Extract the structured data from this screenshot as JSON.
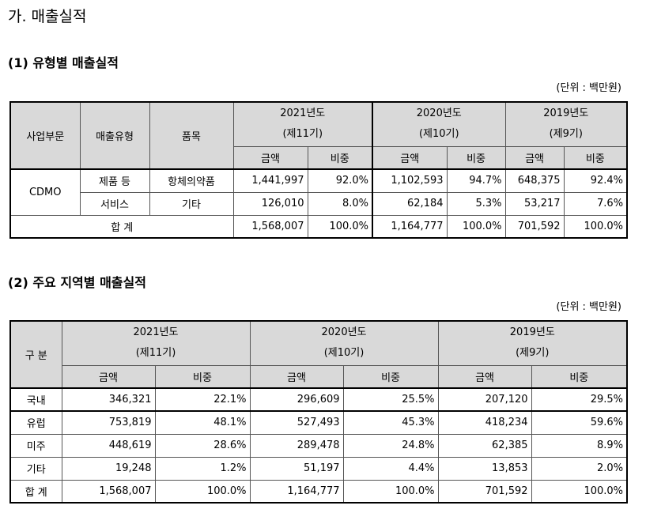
{
  "title": "가. 매출실적",
  "section1": {
    "title": "(1) 유형별 매출실적",
    "unit": "(단위 : 백만원)",
    "headers": {
      "division": "사업부문",
      "type": "매출유형",
      "item": "품목",
      "years": [
        {
          "year": "2021년도",
          "period": "(제11기)"
        },
        {
          "year": "2020년도",
          "period": "(제10기)"
        },
        {
          "year": "2019년도",
          "period": "(제9기)"
        }
      ],
      "amount": "금액",
      "ratio": "비중"
    },
    "division_name": "CDMO",
    "rows": [
      {
        "type": "제품 등",
        "item": "항체의약품",
        "values": [
          "1,441,997",
          "92.0%",
          "1,102,593",
          "94.7%",
          "648,375",
          "92.4%"
        ]
      },
      {
        "type": "서비스",
        "item": "기타",
        "values": [
          "126,010",
          "8.0%",
          "62,184",
          "5.3%",
          "53,217",
          "7.6%"
        ]
      }
    ],
    "total": {
      "label": "합 계",
      "values": [
        "1,568,007",
        "100.0%",
        "1,164,777",
        "100.0%",
        "701,592",
        "100.0%"
      ]
    }
  },
  "section2": {
    "title": "(2) 주요 지역별 매출실적",
    "unit": "(단위 : 백만원)",
    "headers": {
      "category": "구 분",
      "years": [
        {
          "year": "2021년도",
          "period": "(제11기)"
        },
        {
          "year": "2020년도",
          "period": "(제10기)"
        },
        {
          "year": "2019년도",
          "period": "(제9기)"
        }
      ],
      "amount": "금액",
      "ratio": "비중"
    },
    "rows": [
      {
        "region": "국내",
        "values": [
          "346,321",
          "22.1%",
          "296,609",
          "25.5%",
          "207,120",
          "29.5%"
        ]
      },
      {
        "region": "유럽",
        "values": [
          "753,819",
          "48.1%",
          "527,493",
          "45.3%",
          "418,234",
          "59.6%"
        ]
      },
      {
        "region": "미주",
        "values": [
          "448,619",
          "28.6%",
          "289,478",
          "24.8%",
          "62,385",
          "8.9%"
        ]
      },
      {
        "region": "기타",
        "values": [
          "19,248",
          "1.2%",
          "51,197",
          "4.4%",
          "13,853",
          "2.0%"
        ]
      }
    ],
    "total": {
      "label": "합 계",
      "values": [
        "1,568,007",
        "100.0%",
        "1,164,777",
        "100.0%",
        "701,592",
        "100.0%"
      ]
    }
  }
}
